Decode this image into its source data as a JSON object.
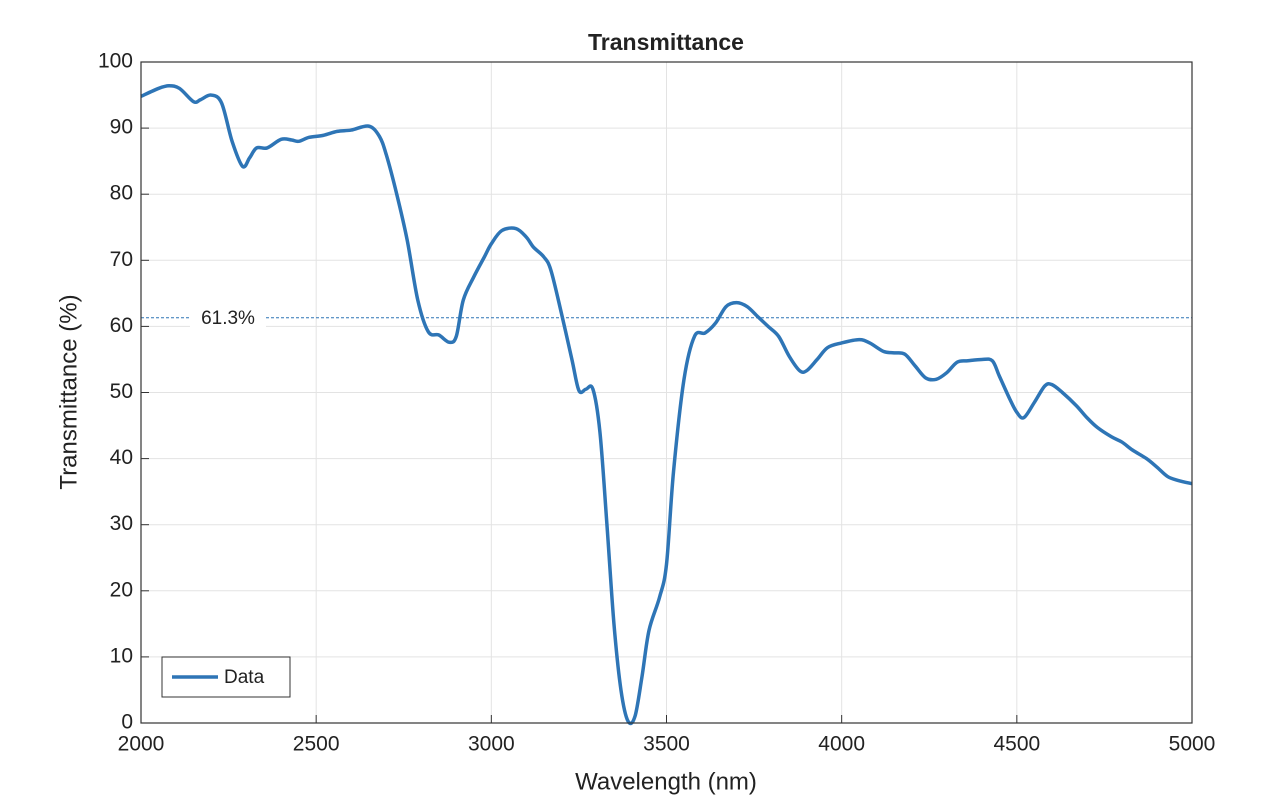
{
  "chart_data": {
    "type": "line",
    "title": "Transmittance",
    "x_label": "Wavelength (nm)",
    "y_label": "Transmittance (%)",
    "x": [
      2000,
      2050,
      2080,
      2110,
      2150,
      2170,
      2200,
      2230,
      2260,
      2290,
      2310,
      2330,
      2360,
      2400,
      2430,
      2450,
      2480,
      2520,
      2560,
      2600,
      2650,
      2680,
      2700,
      2730,
      2760,
      2790,
      2820,
      2850,
      2880,
      2900,
      2920,
      2950,
      2980,
      3000,
      3030,
      3070,
      3100,
      3120,
      3150,
      3170,
      3200,
      3230,
      3250,
      3270,
      3290,
      3310,
      3330,
      3350,
      3370,
      3390,
      3410,
      3430,
      3450,
      3480,
      3500,
      3520,
      3550,
      3580,
      3610,
      3640,
      3670,
      3700,
      3730,
      3760,
      3790,
      3820,
      3850,
      3880,
      3900,
      3930,
      3960,
      4000,
      4050,
      4080,
      4120,
      4150,
      4180,
      4210,
      4240,
      4270,
      4300,
      4330,
      4360,
      4400,
      4430,
      4450,
      4480,
      4500,
      4520,
      4550,
      4580,
      4600,
      4630,
      4670,
      4700,
      4730,
      4770,
      4800,
      4830,
      4870,
      4900,
      4930,
      4960,
      5000
    ],
    "series": [
      {
        "name": "Data",
        "color": "#2e75b6",
        "values": [
          94.8,
          96.0,
          96.4,
          96.0,
          94.0,
          94.3,
          95.0,
          93.8,
          88,
          84.2,
          85.5,
          87,
          87,
          88.3,
          88.2,
          88,
          88.6,
          88.9,
          89.5,
          89.7,
          90.3,
          88.8,
          86,
          80,
          73,
          64,
          59.2,
          58.7,
          57.6,
          58.5,
          64,
          67.5,
          70.5,
          72.5,
          74.5,
          74.8,
          73.5,
          72,
          70.5,
          68.5,
          62,
          55,
          50.3,
          50.5,
          50.5,
          44,
          30,
          15,
          5,
          0.3,
          1,
          7,
          14,
          19,
          24,
          38,
          52,
          58.5,
          59,
          60.5,
          63,
          63.6,
          63,
          61.5,
          60,
          58.5,
          55.5,
          53.3,
          53.3,
          55,
          56.8,
          57.5,
          58,
          57.5,
          56.2,
          56,
          55.8,
          54,
          52.2,
          52,
          53,
          54.6,
          54.8,
          55,
          54.8,
          52.5,
          49,
          47,
          46.2,
          48.5,
          51,
          51.2,
          50,
          48,
          46.2,
          44.7,
          43.3,
          42.5,
          41.3,
          40,
          38.7,
          37.3,
          36.7,
          36.2
        ]
      }
    ],
    "reference_line": {
      "value": 61.3,
      "label": "61.3%"
    },
    "xlim": [
      2000,
      5000
    ],
    "ylim": [
      0,
      100
    ],
    "xticks": [
      2000,
      2500,
      3000,
      3500,
      4000,
      4500,
      5000
    ],
    "yticks": [
      0,
      10,
      20,
      30,
      40,
      50,
      60,
      70,
      80,
      90,
      100
    ],
    "grid": true,
    "legend": "lower left"
  }
}
